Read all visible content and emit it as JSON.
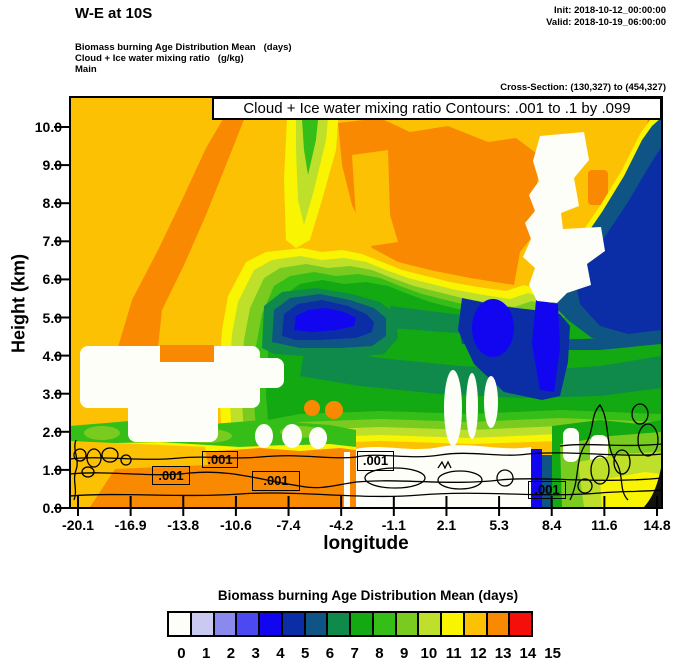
{
  "header": {
    "title": "W-E at 10S",
    "init": "Init: 2018-10-12_00:00:00",
    "valid": "Valid: 2018-10-19_06:00:00",
    "field_line1": "Biomass burning Age Distribution Mean   (days)",
    "field_line2": "Cloud + Ice water mixing ratio   (g/kg)",
    "field_line3": "Main",
    "cross_section": "Cross-Section: (130,327) to (454,327)"
  },
  "plot": {
    "title_box": "Cloud + Ice water mixing ratio Contours: .001 to .1 by .099",
    "xlabel": "longitude",
    "ylabel": "Height (km)",
    "x_ticks": [
      "-20.1",
      "-16.9",
      "-13.8",
      "-10.6",
      "-7.4",
      "-4.2",
      "-1.1",
      "2.1",
      "5.3",
      "8.4",
      "11.6",
      "14.8"
    ],
    "y_ticks": [
      "0.0",
      "1.0",
      "2.0",
      "3.0",
      "4.0",
      "5.0",
      "6.0",
      "7.0",
      "8.0",
      "9.0",
      "10.0"
    ],
    "contour_labels": [
      ".001",
      ".001",
      ".001",
      ".001",
      ".001"
    ],
    "corner_color": "#111111"
  },
  "colorbar": {
    "title": "Biomass burning Age Distribution Mean  (days)",
    "tick_labels": [
      "0",
      "1",
      "2",
      "3",
      "4",
      "5",
      "6",
      "7",
      "8",
      "9",
      "10",
      "11",
      "12",
      "13",
      "14",
      "15"
    ],
    "colors": [
      "#fefef8",
      "#c9c9f2",
      "#8a8aee",
      "#4a49f2",
      "#1206f0",
      "#0b2da6",
      "#0e5585",
      "#0f8a4b",
      "#12a912",
      "#35be17",
      "#7acb20",
      "#bfe02a",
      "#f8f402",
      "#fdc104",
      "#fa8902",
      "#f50f0a"
    ]
  },
  "chart_data": {
    "type": "heatmap",
    "title": "Cloud + Ice water mixing ratio Contours: .001 to .1 by .099",
    "xlabel": "longitude",
    "ylabel": "Height (km)",
    "x_ticks": [
      -20.1,
      -16.9,
      -13.8,
      -10.6,
      -7.4,
      -4.2,
      -1.1,
      2.1,
      5.3,
      8.4,
      11.6,
      14.8
    ],
    "xlim": [
      -20.6,
      15.2
    ],
    "y_ticks": [
      0.0,
      1.0,
      2.0,
      3.0,
      4.0,
      5.0,
      6.0,
      7.0,
      8.0,
      9.0,
      10.0
    ],
    "ylim": [
      0.0,
      10.8
    ],
    "grid": false,
    "legend_position": "bottom",
    "fill_variable": "Biomass burning Age Distribution Mean (days)",
    "fill_levels": [
      0,
      1,
      2,
      3,
      4,
      5,
      6,
      7,
      8,
      9,
      10,
      11,
      12,
      13,
      14,
      15
    ],
    "fill_palette": [
      "#fefef8",
      "#c9c9f2",
      "#8a8aee",
      "#4a49f2",
      "#1206f0",
      "#0b2da6",
      "#0e5585",
      "#0f8a4b",
      "#12a912",
      "#35be17",
      "#7acb20",
      "#bfe02a",
      "#f8f402",
      "#fdc104",
      "#fa8902",
      "#f50f0a"
    ],
    "overlay_contours": {
      "variable": "Cloud + Ice water mixing ratio (g/kg)",
      "levels": [
        0.001,
        0.1
      ],
      "visible_label": ".001",
      "label_count": 5
    },
    "notes": [
      "Background field mostly 13 days (gold) aloft on the west side",
      "Diagonal 14-day (orange) band rises from ~-15E/2km toward -8E/10km",
      "Young air mass (4-7 days, blues/teal) centered ~-8E to 0E at 5-6km and along east edge above 6km",
      "7-10 day greens fill 2-6km across the center and east",
      "White (0 day) cloud gaps near -14E 3-4km, 5E 7-9km and along 0.5-1km east of -4E",
      "Near-surface west of -4E is 14 days (orange); far-east corner drops to 11-12 days (yellow-green/yellow)"
    ]
  }
}
